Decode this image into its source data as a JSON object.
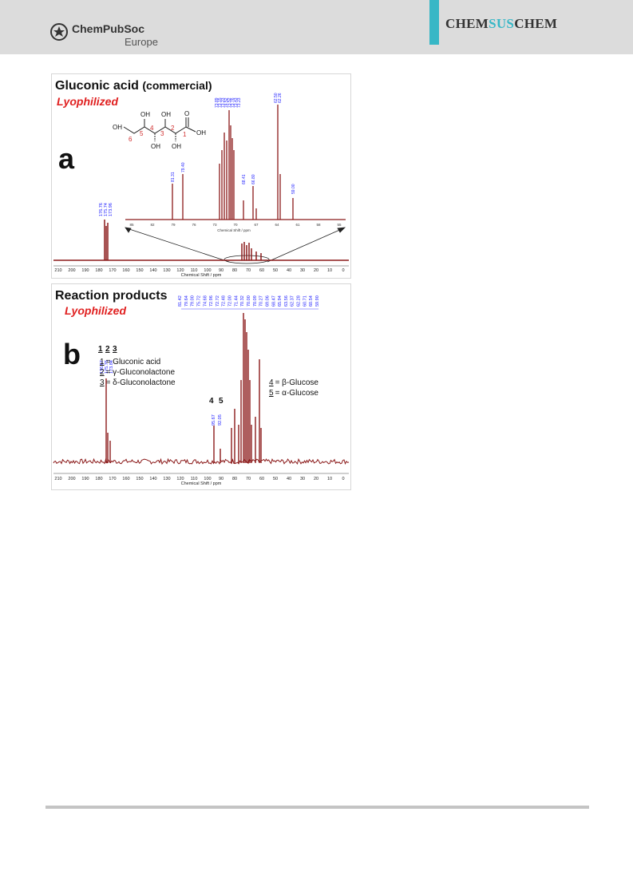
{
  "header": {
    "publisher_name": "ChemPubSoc",
    "publisher_sub": "Europe",
    "journal_prefix": "CHEM",
    "journal_mid": "SUS",
    "journal_suffix": "CHEM",
    "accent_color": "#37b7c6"
  },
  "colors": {
    "spectrum": "#8b1a1a",
    "peak_label": "#1a1aff",
    "lyophilized": "#e02020",
    "carbon_number": "#d03030"
  },
  "figure_a": {
    "panel_letter": "a",
    "title_bold": "Gluconic acid",
    "title_rest": "(commercial)",
    "subtitle": "Lyophilized",
    "x_ticks": [
      "210",
      "200",
      "190",
      "180",
      "170",
      "160",
      "150",
      "140",
      "130",
      "120",
      "110",
      "100",
      "90",
      "80",
      "70",
      "60",
      "50",
      "40",
      "30",
      "20",
      "10",
      "0"
    ],
    "x_label": "Chemical Shift / ppm",
    "peak_labels": [
      "176.76",
      "175.74",
      "173.96"
    ],
    "inset": {
      "x_ticks": [
        "85",
        "82",
        "79",
        "76",
        "73",
        "70",
        "67",
        "64",
        "61",
        "58",
        "55"
      ],
      "x_label": "Chemical Shift / ppm",
      "peak_labels_left": [
        "81.31",
        "79.40"
      ],
      "peak_labels_cluster": [
        "73.89",
        "73.15",
        "73.23",
        "74.52",
        "73.52",
        "73.76",
        "73.43",
        "73.23"
      ],
      "peak_labels_mid": [
        "68.41",
        "66.80"
      ],
      "peak_labels_right": [
        "62.50",
        "62.26",
        "59.00"
      ]
    },
    "structure": {
      "oh_labels": [
        "OH",
        "OH",
        "OH",
        "OH",
        "OH",
        "OH"
      ],
      "carbonyl": "O",
      "carbon_numbers": [
        "6",
        "5",
        "4",
        "3",
        "2",
        "1"
      ]
    }
  },
  "figure_b": {
    "panel_letter": "b",
    "title": "Reaction products",
    "subtitle": "Lyophilized",
    "x_ticks": [
      "210",
      "200",
      "190",
      "180",
      "170",
      "160",
      "150",
      "140",
      "130",
      "120",
      "110",
      "100",
      "90",
      "80",
      "70",
      "60",
      "50",
      "40",
      "30",
      "20",
      "10",
      "0"
    ],
    "x_label": "Chemical Shift / ppm",
    "peak_labels_top": [
      "81.42",
      "79.64",
      "79.00",
      "75.72",
      "74.68",
      "72.96",
      "72.72",
      "72.48",
      "72.00",
      "71.44",
      "70.32",
      "70.00",
      "70.09",
      "70.27",
      "69.06",
      "68.47",
      "65.94",
      "63.56",
      "62.37",
      "62.28",
      "60.71",
      "60.54",
      "59.90"
    ],
    "peak_labels_acid": [
      "176.67",
      "175.76",
      "173.84"
    ],
    "peak_labels_glucose": [
      "95.67",
      "92.05"
    ],
    "acid_numbers": [
      "1",
      "2",
      "3"
    ],
    "glucose_numbers": [
      "4",
      "5"
    ],
    "legend_left": [
      {
        "num": "1",
        "text": "= Gluconic acid"
      },
      {
        "num": "2",
        "text": "= γ-Gluconolactone"
      },
      {
        "num": "3",
        "text": "= δ-Gluconolactone"
      }
    ],
    "legend_right": [
      {
        "num": "4",
        "text": "= β-Glucose"
      },
      {
        "num": "5",
        "text": "= α-Glucose"
      }
    ]
  }
}
